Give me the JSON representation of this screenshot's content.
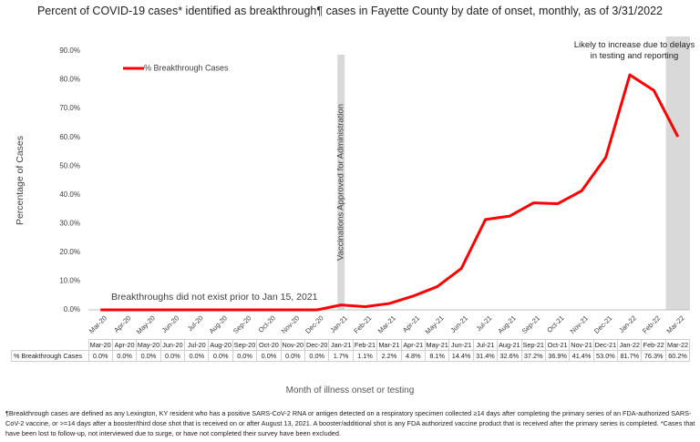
{
  "chart_data": {
    "type": "line",
    "title": "Percent of COVID-19 cases* identified as breakthrough¶ cases in Fayette County by date of onset, monthly, as of 3/31/2022",
    "y_label": "Percentage of Cases",
    "x_label": "Month of illness onset or testing",
    "annotations": [
      "Vaccinations Approved for Administration",
      "Breakthroughs did not exist prior to Jan 15, 2021",
      "Likely to increase due to delays in testing and reporting"
    ],
    "footnote": "¶Breakthrough cases are defined as any Lexington, KY resident who has a positive SARS-CoV-2 RNA or antigen detected on a respiratory specimen collected ≥14 days after completing the primary series of an FDA-authorized SARS-CoV-2 vaccine, or >=14 days after a booster/third dose shot that is received on or after August 13, 2021.  A booster/additional shot is any FDA authorized vaccine product that is received after the primary series is completed.  *Cases that have been lost to follow-up, not interviewed due to surge, or have not completed their survey have been excluded.",
    "categories": [
      "Mar-20",
      "Apr-20",
      "May-20",
      "Jun-20",
      "Jul-20",
      "Aug-20",
      "Sep-20",
      "Oct-20",
      "Nov-20",
      "Dec-20",
      "Jan-21",
      "Feb-21",
      "Mar-21",
      "Apr-21",
      "May-21",
      "Jun-21",
      "Jul-21",
      "Aug-21",
      "Sep-21",
      "Oct-21",
      "Nov-21",
      "Dec-21",
      "Jan-22",
      "Feb-22",
      "Mar-22"
    ],
    "series": [
      {
        "name": "% Breakthrough Cases",
        "color": "#ff0000",
        "values": [
          0.0,
          0.0,
          0.0,
          0.0,
          0.0,
          0.0,
          0.0,
          0.0,
          0.0,
          0.0,
          1.7,
          1.1,
          2.2,
          4.8,
          8.1,
          14.4,
          31.4,
          32.6,
          37.2,
          36.9,
          41.4,
          53.0,
          81.7,
          76.3,
          60.2
        ],
        "value_labels": [
          "0.0%",
          "0.0%",
          "0.0%",
          "0.0%",
          "0.0%",
          "0.0%",
          "0.0%",
          "0.0%",
          "0.0%",
          "0.0%",
          "1.7%",
          "1.1%",
          "2.2%",
          "4.8%",
          "8.1%",
          "14.4%",
          "31.4%",
          "32.6%",
          "37.2%",
          "36.9%",
          "41.4%",
          "53.0%",
          "81.7%",
          "76.3%",
          "60.2%"
        ]
      }
    ],
    "ylim": [
      0,
      90
    ],
    "yticks": [
      {
        "value": 0,
        "label": "0.0%"
      },
      {
        "value": 10,
        "label": "10.0%"
      },
      {
        "value": 20,
        "label": "20.0%"
      },
      {
        "value": 30,
        "label": "30.0%"
      },
      {
        "value": 40,
        "label": "40.0%"
      },
      {
        "value": 50,
        "label": "50.0%"
      },
      {
        "value": 60,
        "label": "60.0%"
      },
      {
        "value": 70,
        "label": "70.0%"
      },
      {
        "value": 80,
        "label": "80.0%"
      },
      {
        "value": 90,
        "label": "90.0%"
      }
    ],
    "legend": "top-left",
    "grid": false
  }
}
